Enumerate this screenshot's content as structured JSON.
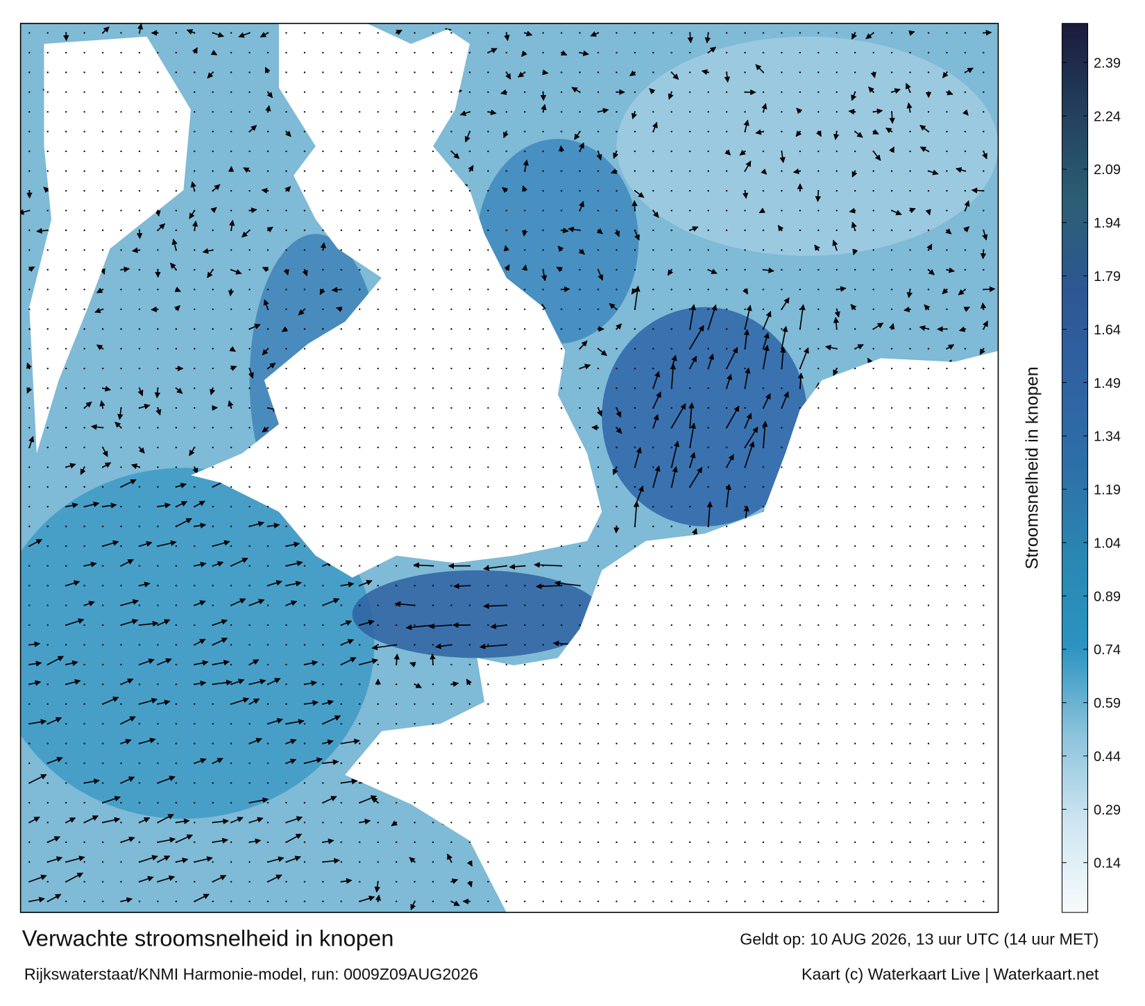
{
  "map": {
    "title": "Verwachte stroomsnelheid in knopen",
    "valid": "Geldt op: 10 AUG 2026, 13 uur UTC (14 uur MET)",
    "model": "Rijkswaterstaat/KNMI Harmonie-model, run: 0009Z09AUG2026",
    "credit": "Kaart (c) Waterkaart Live | Waterkaart.net"
  },
  "colorbar": {
    "label": "Stroomsnelheid in knopen",
    "lim": [
      0,
      2.5
    ],
    "ticks": [
      0.14,
      0.29,
      0.44,
      0.59,
      0.74,
      0.89,
      1.04,
      1.19,
      1.34,
      1.49,
      1.64,
      1.79,
      1.94,
      2.09,
      2.24,
      2.39
    ],
    "colors": [
      "#f7fbfd",
      "#cfe6f1",
      "#8cc3dc",
      "#2b93c0",
      "#2a87b2",
      "#2e6fa8",
      "#2f62a2",
      "#2d5792",
      "#2b5f74",
      "#23405f",
      "#1b1b3a"
    ]
  }
}
